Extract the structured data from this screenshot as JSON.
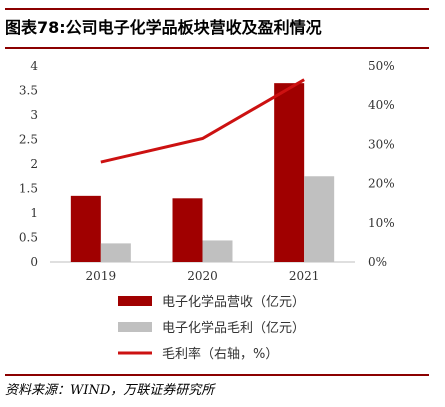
{
  "title": "图表78:公司电子化学品板块营收及盈利情况",
  "source": "资料来源：WIND，万联证券研究所",
  "colors": {
    "revenue": "#a00000",
    "gross_profit": "#c0c0c0",
    "margin": "#cc1111",
    "rule": "#8b0000"
  },
  "chart_data": {
    "type": "bar",
    "categories": [
      "2019",
      "2020",
      "2021"
    ],
    "series": [
      {
        "name": "电子化学品营收（亿元）",
        "type": "bar",
        "axis": "left",
        "values": [
          1.35,
          1.3,
          3.65
        ]
      },
      {
        "name": "电子化学品毛利（亿元）",
        "type": "bar",
        "axis": "left",
        "values": [
          0.38,
          0.44,
          1.75
        ]
      },
      {
        "name": "毛利率（右轴，%）",
        "type": "line",
        "axis": "right",
        "values": [
          25.5,
          31.5,
          46.5
        ]
      }
    ],
    "left_axis": {
      "ticks": [
        "0",
        "0.5",
        "1",
        "1.5",
        "2",
        "2.5",
        "3",
        "3.5",
        "4"
      ],
      "ylim": [
        0,
        4
      ]
    },
    "right_axis": {
      "ticks": [
        "0%",
        "10%",
        "20%",
        "30%",
        "40%",
        "50%"
      ],
      "ylim": [
        0,
        50
      ]
    },
    "grid": false,
    "legend_position": "bottom"
  }
}
